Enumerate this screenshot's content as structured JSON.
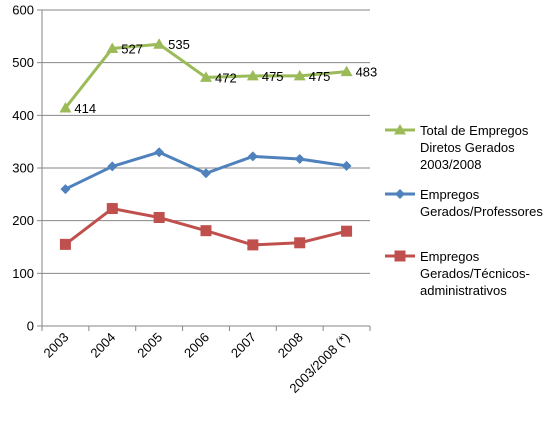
{
  "chart_data": {
    "type": "line",
    "categories": [
      "2003",
      "2004",
      "2005",
      "2006",
      "2007",
      "2008",
      "2003/2008 (*)"
    ],
    "ylim": [
      0,
      600
    ],
    "yticks": [
      0,
      100,
      200,
      300,
      400,
      500,
      600
    ],
    "grid": true,
    "legend_position": "right",
    "series": [
      {
        "name_lines": [
          "Total de Empregos",
          "Diretos Gerados",
          "2003/2008"
        ],
        "color": "#9BBB59",
        "marker": "triangle",
        "values": [
          414,
          527,
          535,
          472,
          475,
          475,
          483
        ],
        "data_labels": [
          "414",
          "527",
          "535",
          "472",
          "475",
          "475",
          "483"
        ]
      },
      {
        "name_lines": [
          "Empregos",
          "Gerados/Professores"
        ],
        "color": "#4F81BD",
        "marker": "diamond",
        "values": [
          260,
          303,
          330,
          290,
          322,
          317,
          304
        ]
      },
      {
        "name_lines": [
          "Empregos",
          "Gerados/Técnicos-",
          "administrativos"
        ],
        "color": "#C0504D",
        "marker": "square",
        "values": [
          155,
          223,
          206,
          181,
          154,
          158,
          180
        ]
      }
    ]
  }
}
